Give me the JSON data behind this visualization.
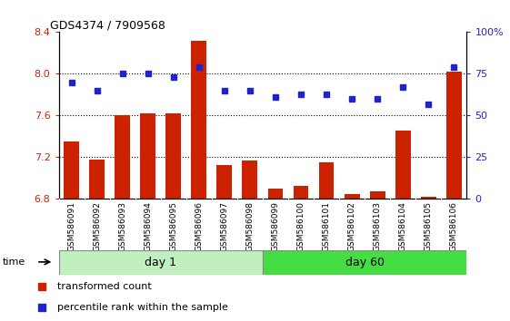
{
  "title": "GDS4374 / 7909568",
  "samples": [
    "GSM586091",
    "GSM586092",
    "GSM586093",
    "GSM586094",
    "GSM586095",
    "GSM586096",
    "GSM586097",
    "GSM586098",
    "GSM586099",
    "GSM586100",
    "GSM586101",
    "GSM586102",
    "GSM586103",
    "GSM586104",
    "GSM586105",
    "GSM586106"
  ],
  "transformed_count": [
    7.35,
    7.18,
    7.6,
    7.62,
    7.62,
    8.32,
    7.13,
    7.17,
    6.9,
    6.93,
    7.15,
    6.85,
    6.87,
    7.46,
    6.82,
    8.02
  ],
  "percentile_rank": [
    70,
    65,
    75,
    75,
    73,
    79,
    65,
    65,
    61,
    63,
    63,
    60,
    60,
    67,
    57,
    79
  ],
  "day1_count": 8,
  "day60_count": 8,
  "ylim_left": [
    6.8,
    8.4
  ],
  "ylim_right": [
    0,
    100
  ],
  "bar_color": "#cc2200",
  "dot_color": "#2222cc",
  "day1_bg": "#c0f0c0",
  "day60_bg": "#44dd44",
  "tick_bg": "#d0d0d0",
  "grid_color": "black",
  "yticks_left": [
    6.8,
    7.2,
    7.6,
    8.0,
    8.4
  ],
  "yticks_right": [
    0,
    25,
    50,
    75,
    100
  ],
  "bar_width": 0.6,
  "figsize": [
    5.61,
    3.54
  ],
  "dpi": 100
}
